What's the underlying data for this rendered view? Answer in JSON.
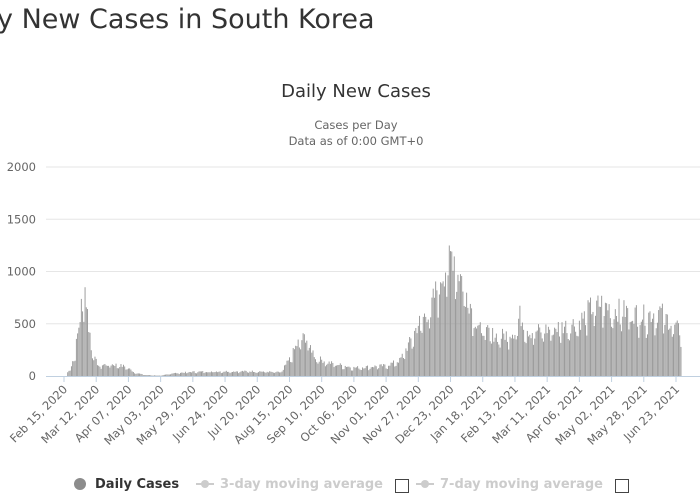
{
  "page": {
    "title": "ily New Cases in South Korea"
  },
  "chart_data": {
    "type": "bar",
    "title": "Daily New Cases",
    "subtitle_line1": "Cases per Day",
    "subtitle_line2": "Data as of 0:00 GMT+0",
    "xlabel": "",
    "ylabel": "",
    "ylim": [
      0,
      2000
    ],
    "yticks": [
      "0",
      "500",
      "1000",
      "1500",
      "2000"
    ],
    "grid": true,
    "legend_position": "bottom",
    "bar_color": "#969696",
    "xtick_labels": [
      "Feb 15, 2020",
      "Mar 12, 2020",
      "Apr 07, 2020",
      "May 03, 2020",
      "May 29, 2020",
      "Jun 24, 2020",
      "Jul 20, 2020",
      "Aug 15, 2020",
      "Sep 10, 2020",
      "Oct 06, 2020",
      "Nov 01, 2020",
      "Nov 27, 2020",
      "Dec 23, 2020",
      "Jan 18, 2021",
      "Feb 13, 2021",
      "Mar 11, 2021",
      "Apr 06, 2021",
      "May 02, 2021",
      "May 28, 2021",
      "Jun 23, 2021"
    ],
    "series": [
      {
        "name": "Daily Cases",
        "anchors": [
          [
            "Feb 15, 2020",
            0
          ],
          [
            "Feb 20, 2020",
            60
          ],
          [
            "Feb 24, 2020",
            230
          ],
          [
            "Feb 28, 2020",
            560
          ],
          [
            "Mar 01, 2020",
            780
          ],
          [
            "Mar 03, 2020",
            850
          ],
          [
            "Mar 06, 2020",
            480
          ],
          [
            "Mar 10, 2020",
            180
          ],
          [
            "Mar 14, 2020",
            100
          ],
          [
            "Mar 20, 2020",
            110
          ],
          [
            "Mar 27, 2020",
            110
          ],
          [
            "Apr 05, 2020",
            90
          ],
          [
            "Apr 12, 2020",
            35
          ],
          [
            "Apr 20, 2020",
            10
          ],
          [
            "May 03, 2020",
            3
          ],
          [
            "May 12, 2020",
            25
          ],
          [
            "May 29, 2020",
            40
          ],
          [
            "Jun 24, 2020",
            45
          ],
          [
            "Jul 20, 2020",
            45
          ],
          [
            "Aug 08, 2020",
            35
          ],
          [
            "Aug 15, 2020",
            160
          ],
          [
            "Aug 22, 2020",
            320
          ],
          [
            "Aug 28, 2020",
            380
          ],
          [
            "Sep 05, 2020",
            180
          ],
          [
            "Sep 15, 2020",
            130
          ],
          [
            "Oct 06, 2020",
            80
          ],
          [
            "Nov 01, 2020",
            100
          ],
          [
            "Nov 12, 2020",
            150
          ],
          [
            "Nov 20, 2020",
            320
          ],
          [
            "Nov 27, 2020",
            500
          ],
          [
            "Dec 07, 2020",
            650
          ],
          [
            "Dec 15, 2020",
            950
          ],
          [
            "Dec 20, 2020",
            1070
          ],
          [
            "Dec 25, 2020",
            1200
          ],
          [
            "Dec 30, 2020",
            1000
          ],
          [
            "Jan 05, 2021",
            800
          ],
          [
            "Jan 12, 2021",
            550
          ],
          [
            "Jan 20, 2021",
            420
          ],
          [
            "Feb 01, 2021",
            380
          ],
          [
            "Feb 13, 2021",
            430
          ],
          [
            "Feb 17, 2021",
            580
          ],
          [
            "Feb 25, 2021",
            420
          ],
          [
            "Mar 11, 2021",
            450
          ],
          [
            "Mar 25, 2021",
            480
          ],
          [
            "Apr 06, 2021",
            520
          ],
          [
            "Apr 15, 2021",
            650
          ],
          [
            "Apr 25, 2021",
            700
          ],
          [
            "May 02, 2021",
            640
          ],
          [
            "May 15, 2021",
            620
          ],
          [
            "May 28, 2021",
            580
          ],
          [
            "Jun 10, 2021",
            620
          ],
          [
            "Jun 20, 2021",
            500
          ],
          [
            "Jun 27, 2021",
            420
          ]
        ]
      }
    ]
  },
  "legend": {
    "items": [
      {
        "label": "Daily Cases",
        "active": true
      },
      {
        "label": "3-day moving average",
        "active": false
      },
      {
        "label": "7-day moving average",
        "active": false
      }
    ]
  }
}
